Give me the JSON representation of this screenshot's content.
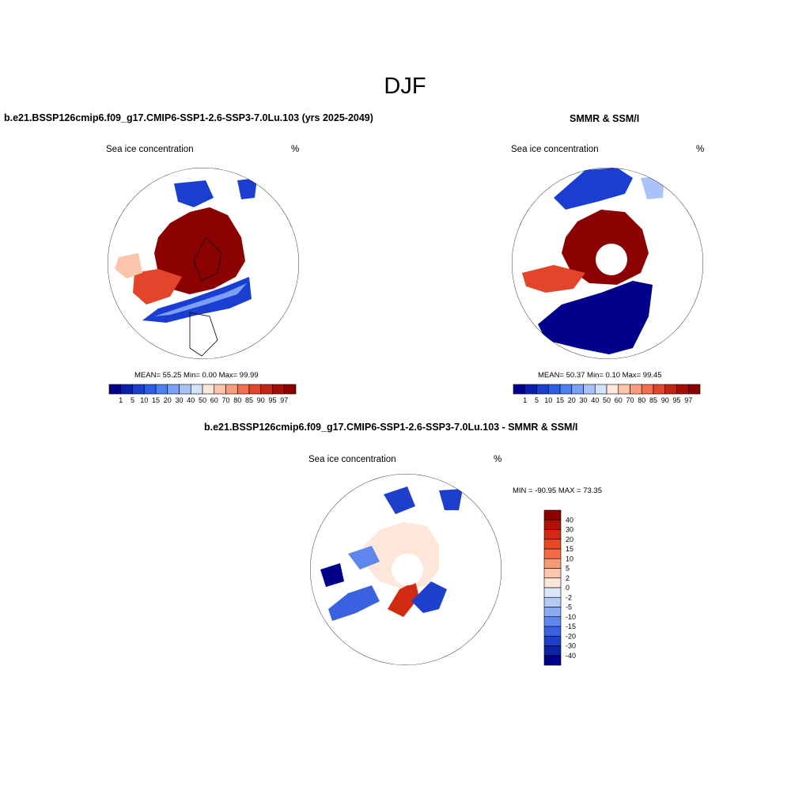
{
  "page_title": "DJF",
  "panels": [
    {
      "title": "b.e21.BSSP126cmip6.f09_g17.CMIP6-SSP1-2.6-SSP3-7.0Lu.103 (yrs 2025-2049)",
      "left_label": "Sea ice concentration",
      "right_label": "%",
      "stats": "MEAN=  55.25  Min=   0.00  Max=  99.99"
    },
    {
      "title": "SMMR & SSM/I",
      "left_label": "Sea ice concentration",
      "right_label": "%",
      "stats": "MEAN=  50.37  Min=   0.10  Max=  99.45"
    },
    {
      "title": "b.e21.BSSP126cmip6.f09_g17.CMIP6-SSP1-2.6-SSP3-7.0Lu.103 - SMMR & SSM/I",
      "left_label": "Sea ice concentration",
      "right_label": "%",
      "stats": "MIN = -90.95 MAX =  73.35"
    }
  ],
  "chart_data": [
    {
      "type": "heatmap",
      "map_projection": "north polar stereographic",
      "title": "b.e21.BSSP126cmip6.f09_g17.CMIP6-SSP1-2.6-SSP3-7.0Lu.103 (yrs 2025-2049)",
      "variable": "Sea ice concentration",
      "units": "%",
      "mean": 55.25,
      "min": 0.0,
      "max": 99.99,
      "colorbar": {
        "orientation": "horizontal",
        "levels": [
          "1",
          "5",
          "10",
          "15",
          "20",
          "30",
          "40",
          "50",
          "60",
          "70",
          "80",
          "85",
          "90",
          "95",
          "97"
        ],
        "colors": [
          "#00008b",
          "#0a1fb0",
          "#1a3fd0",
          "#2c5fe6",
          "#4d7ff0",
          "#7a9ff5",
          "#a9c2f7",
          "#d5e3fa",
          "#fde6da",
          "#fcc4ab",
          "#f99d7f",
          "#f2704e",
          "#e2452a",
          "#c62312",
          "#a80d05",
          "#8b0000"
        ]
      }
    },
    {
      "type": "heatmap",
      "map_projection": "north polar stereographic",
      "title": "SMMR & SSM/I",
      "variable": "Sea ice concentration",
      "units": "%",
      "mean": 50.37,
      "min": 0.1,
      "max": 99.45,
      "colorbar": {
        "orientation": "horizontal",
        "levels": [
          "1",
          "5",
          "10",
          "15",
          "20",
          "30",
          "40",
          "50",
          "60",
          "70",
          "80",
          "85",
          "90",
          "95",
          "97"
        ],
        "colors": [
          "#00008b",
          "#0a1fb0",
          "#1a3fd0",
          "#2c5fe6",
          "#4d7ff0",
          "#7a9ff5",
          "#a9c2f7",
          "#d5e3fa",
          "#fde6da",
          "#fcc4ab",
          "#f99d7f",
          "#f2704e",
          "#e2452a",
          "#c62312",
          "#a80d05",
          "#8b0000"
        ]
      }
    },
    {
      "type": "heatmap",
      "map_projection": "north polar stereographic",
      "title": "b.e21.BSSP126cmip6.f09_g17.CMIP6-SSP1-2.6-SSP3-7.0Lu.103 - SMMR & SSM/I",
      "variable": "Sea ice concentration",
      "units": "%",
      "min": -90.95,
      "max": 73.35,
      "colorbar": {
        "orientation": "vertical",
        "levels": [
          "40",
          "30",
          "20",
          "15",
          "10",
          "5",
          "2",
          "0",
          "-2",
          "-5",
          "-10",
          "-15",
          "-20",
          "-30",
          "-40"
        ],
        "colors": [
          "#8b0000",
          "#b01005",
          "#d02a10",
          "#e64a22",
          "#f26b45",
          "#f79a78",
          "#fbc6ab",
          "#fde7da",
          "#dbe7fb",
          "#b3cbf7",
          "#8aaaf2",
          "#5f86ec",
          "#3a62e0",
          "#1e3fcc",
          "#0d22a8",
          "#00008b"
        ]
      }
    }
  ]
}
